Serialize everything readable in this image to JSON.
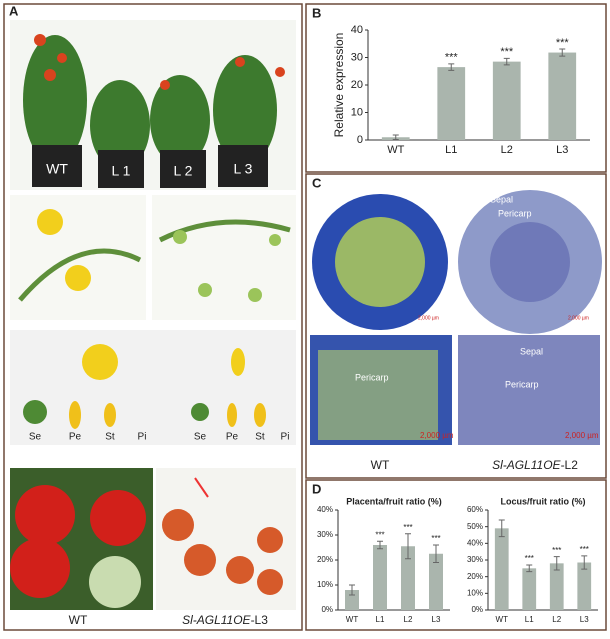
{
  "panel_labels": [
    "A",
    "B",
    "C",
    "D"
  ],
  "panel_a": {
    "plant_labels": [
      "WT",
      "L 1",
      "L 2",
      "L 3"
    ],
    "parts_wt": [
      "Se",
      "Pe",
      "St",
      "Pi"
    ],
    "parts_oe": [
      "Se",
      "Pe",
      "St",
      "Pi"
    ],
    "caption_wt": "WT",
    "caption_oe": {
      "italic": "Sl-AGL11OE",
      "suffix": "-L3"
    }
  },
  "panel_c": {
    "labels": [
      "Sepal",
      "Pericarp",
      "Pericarp",
      "Sepal",
      "Pericarp"
    ],
    "scale_bars": [
      "2,000 µm",
      "2,000 µm",
      "2,000 µm",
      "2,000 µm"
    ],
    "caption_wt": "WT",
    "caption_oe": {
      "italic": "Sl-AGL11OE",
      "suffix": "-L2"
    }
  },
  "chart_data": [
    {
      "type": "bar",
      "y_label": "Relative expression",
      "categories": [
        "WT",
        "L1",
        "L2",
        "L3"
      ],
      "values": [
        1,
        26.5,
        28.5,
        31.8
      ],
      "errors": [
        0.8,
        1.2,
        1.2,
        1.3
      ],
      "significance": [
        null,
        "***",
        "***",
        "***"
      ],
      "color": "#aab5ad",
      "ylim": [
        0,
        40
      ],
      "yticks": [
        0,
        10,
        20,
        30,
        40
      ]
    },
    {
      "type": "bar",
      "title": "Placenta/fruit ratio (%)",
      "categories": [
        "WT",
        "L1",
        "L2",
        "L3"
      ],
      "values": [
        8,
        26,
        25.5,
        22.5
      ],
      "errors": [
        2,
        1.5,
        5,
        3.5
      ],
      "significance": [
        null,
        "***",
        "***",
        "***"
      ],
      "color": "#aab5ad",
      "ylim": [
        0,
        40
      ],
      "yticks": [
        {
          "value": 0,
          "label": "0%"
        },
        {
          "value": 10,
          "label": "10%"
        },
        {
          "value": 20,
          "label": "20%"
        },
        {
          "value": 30,
          "label": "30%"
        },
        {
          "value": 40,
          "label": "40%"
        }
      ]
    },
    {
      "type": "bar",
      "title": "Locus/fruit ratio (%)",
      "categories": [
        "WT",
        "L1",
        "L2",
        "L3"
      ],
      "values": [
        49,
        25,
        28,
        28.5
      ],
      "errors": [
        5,
        2,
        4,
        4
      ],
      "significance": [
        null,
        "***",
        "***",
        "***"
      ],
      "color": "#aab5ad",
      "ylim": [
        0,
        60
      ],
      "yticks": [
        {
          "value": 0,
          "label": "0%"
        },
        {
          "value": 10,
          "label": "10%"
        },
        {
          "value": 20,
          "label": "20%"
        },
        {
          "value": 30,
          "label": "30%"
        },
        {
          "value": 40,
          "label": "40%"
        },
        {
          "value": 50,
          "label": "50%"
        },
        {
          "value": 60,
          "label": "60%"
        }
      ]
    }
  ]
}
